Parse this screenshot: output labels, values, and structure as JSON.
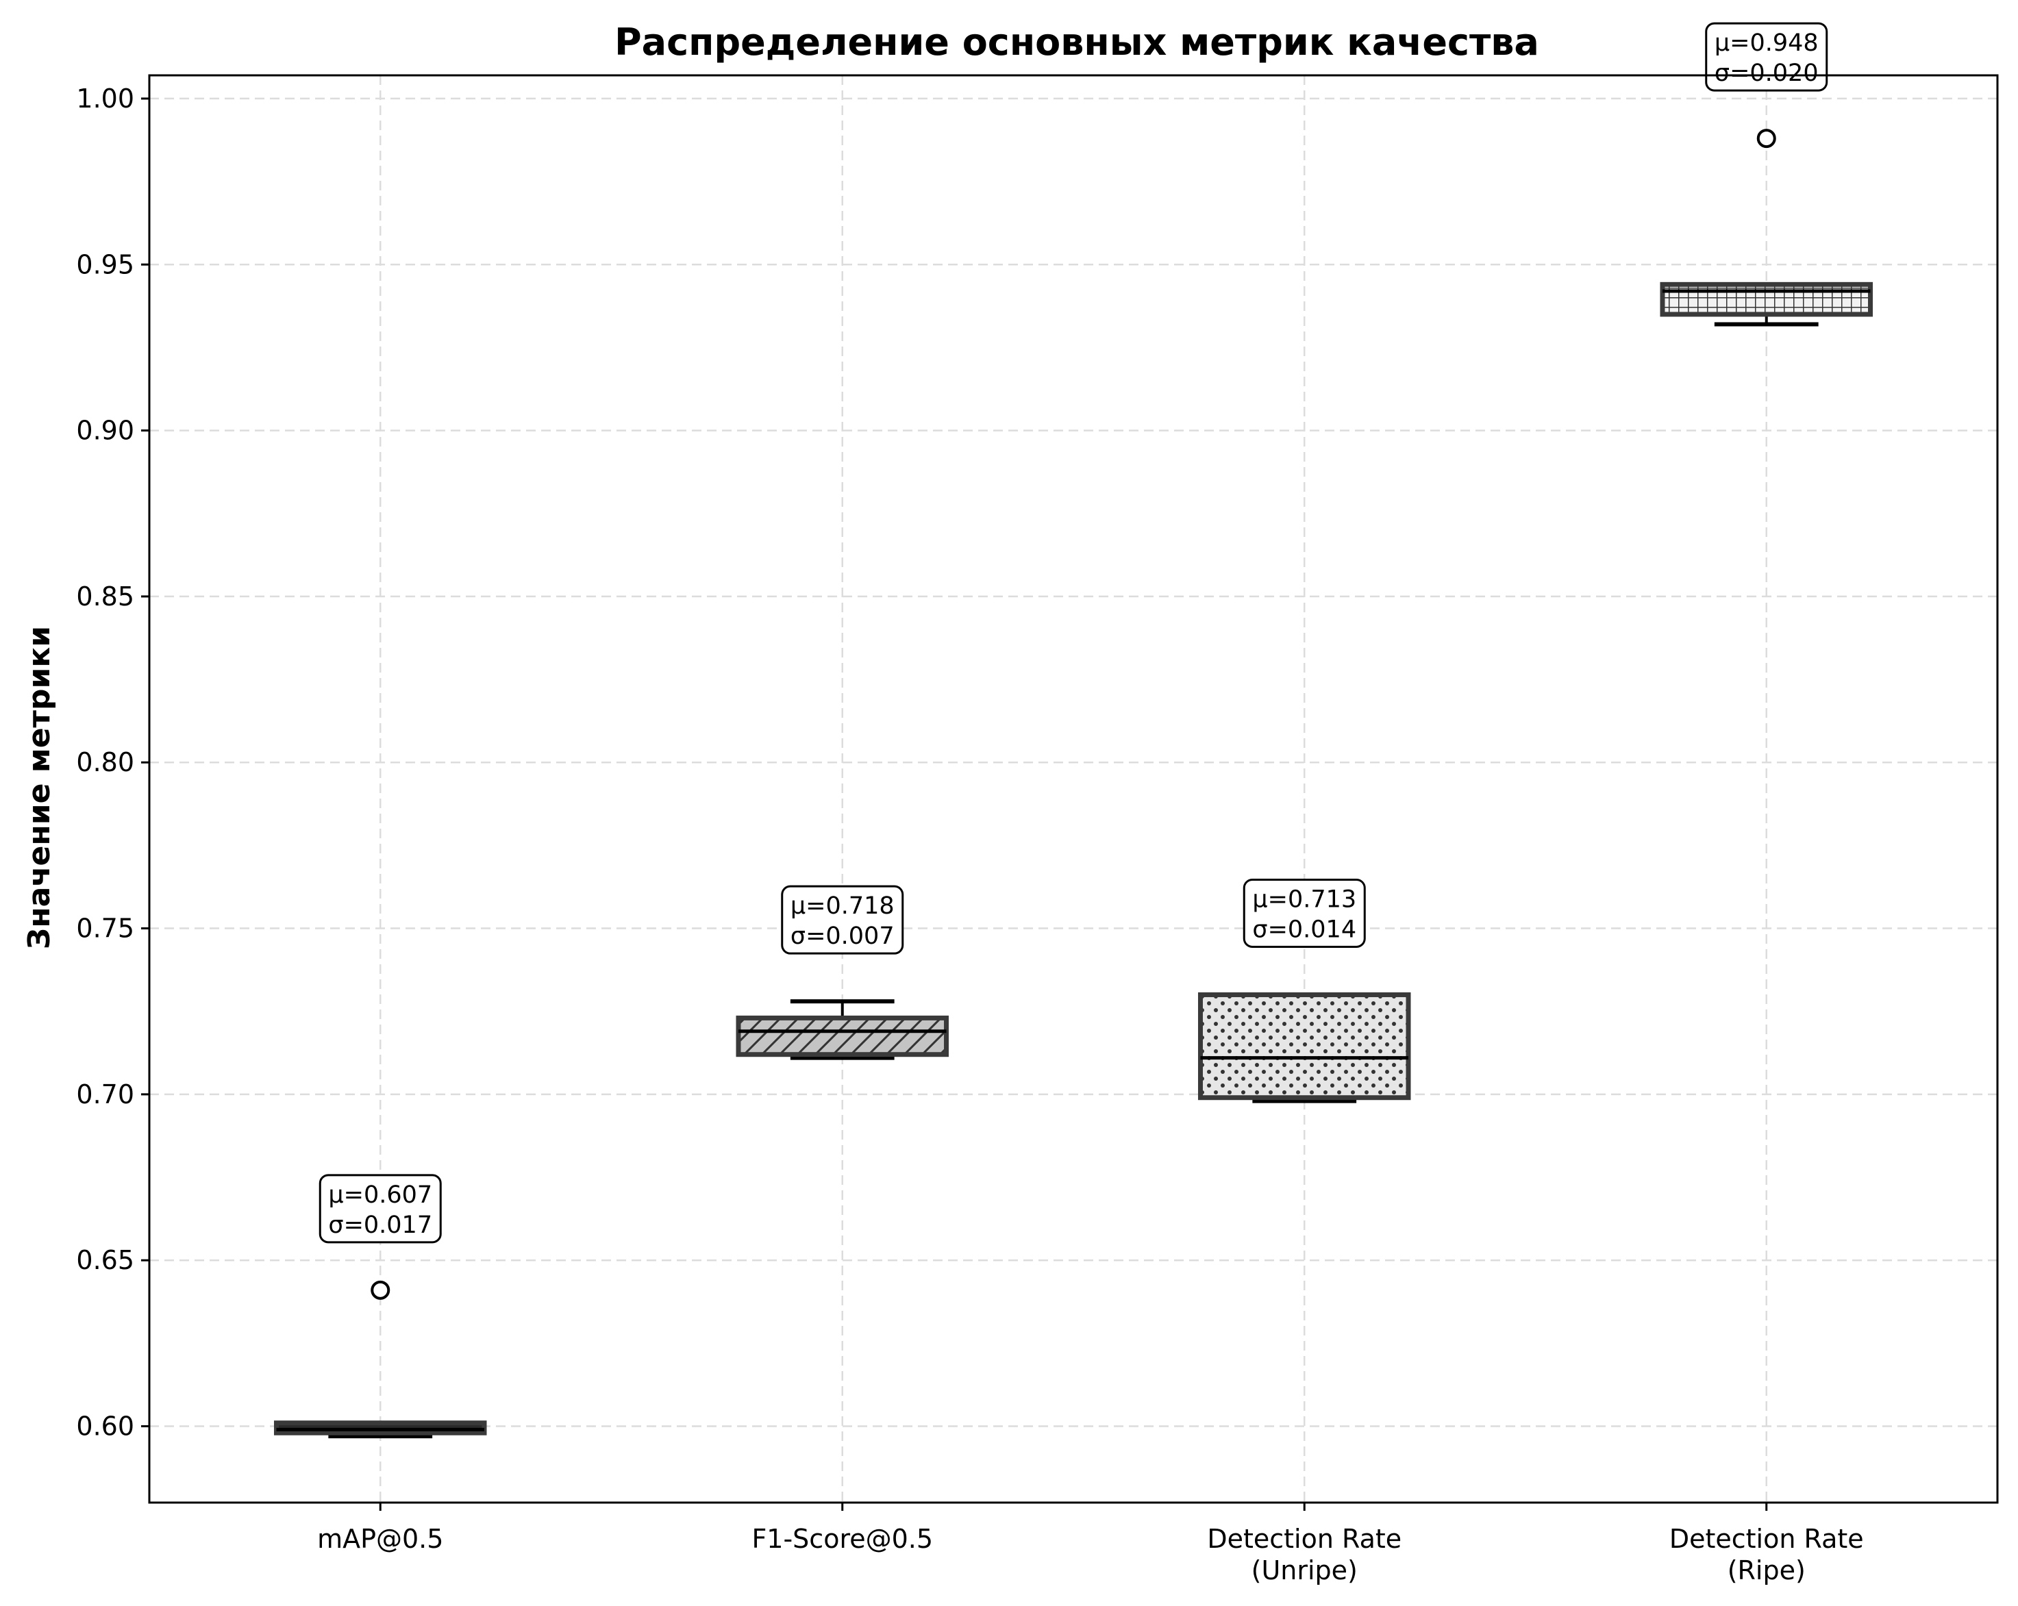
{
  "chart_data": {
    "type": "box",
    "title": "Распределение основных метрик качества",
    "xlabel": "",
    "ylabel": "Значение метрики",
    "ylim": [
      0.577,
      1.007
    ],
    "yticks": [
      "0.60",
      "0.65",
      "0.70",
      "0.75",
      "0.80",
      "0.85",
      "0.90",
      "0.95",
      "1.00"
    ],
    "grid": true,
    "categories": [
      {
        "label_lines": [
          "mAP@0.5"
        ],
        "whisker_low": 0.597,
        "q1": 0.598,
        "median": 0.599,
        "q3": 0.601,
        "whisker_high": 0.601,
        "outliers": [
          0.641
        ],
        "pattern": "solid-dark",
        "stats": [
          "μ=0.607",
          "σ=0.017"
        ]
      },
      {
        "label_lines": [
          "F1-Score@0.5"
        ],
        "whisker_low": 0.711,
        "q1": 0.712,
        "median": 0.719,
        "q3": 0.723,
        "whisker_high": 0.728,
        "outliers": [],
        "pattern": "hatch-diagonal",
        "stats": [
          "μ=0.718",
          "σ=0.007"
        ]
      },
      {
        "label_lines": [
          "Detection Rate",
          "(Unripe)"
        ],
        "whisker_low": 0.698,
        "q1": 0.699,
        "median": 0.711,
        "q3": 0.73,
        "whisker_high": 0.73,
        "outliers": [],
        "pattern": "dots",
        "stats": [
          "μ=0.713",
          "σ=0.014"
        ]
      },
      {
        "label_lines": [
          "Detection Rate",
          "(Ripe)"
        ],
        "whisker_low": 0.932,
        "q1": 0.935,
        "median": 0.942,
        "q3": 0.944,
        "whisker_high": 0.944,
        "outliers": [
          0.988
        ],
        "pattern": "grid",
        "stats": [
          "μ=0.948",
          "σ=0.020"
        ]
      }
    ]
  }
}
